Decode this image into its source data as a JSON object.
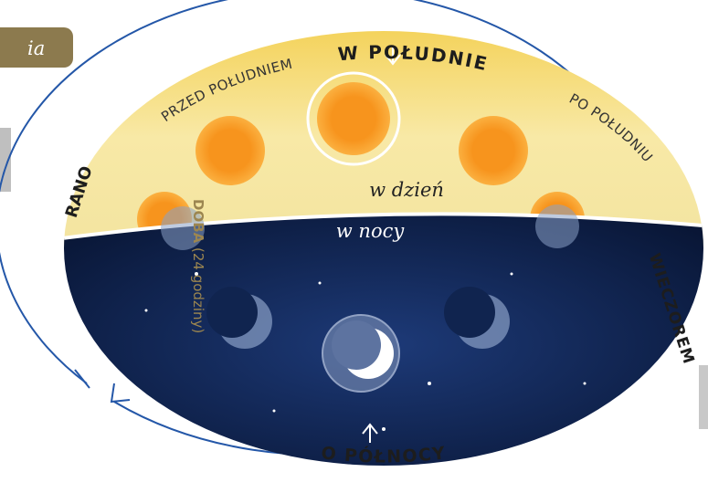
{
  "tab": {
    "label": "ia"
  },
  "labels": {
    "noon": "W POŁUDNIE",
    "before_noon": "PRZED POŁUDNIEM",
    "after_noon": "PO POŁUDNIU",
    "morning": "RANO",
    "evening": "WIECZOREM",
    "midnight": "O PÓŁNOCY",
    "day": "w dzień",
    "night": "w nocy"
  },
  "side": {
    "title": "DOBA",
    "note": "(24 godziny)"
  }
}
